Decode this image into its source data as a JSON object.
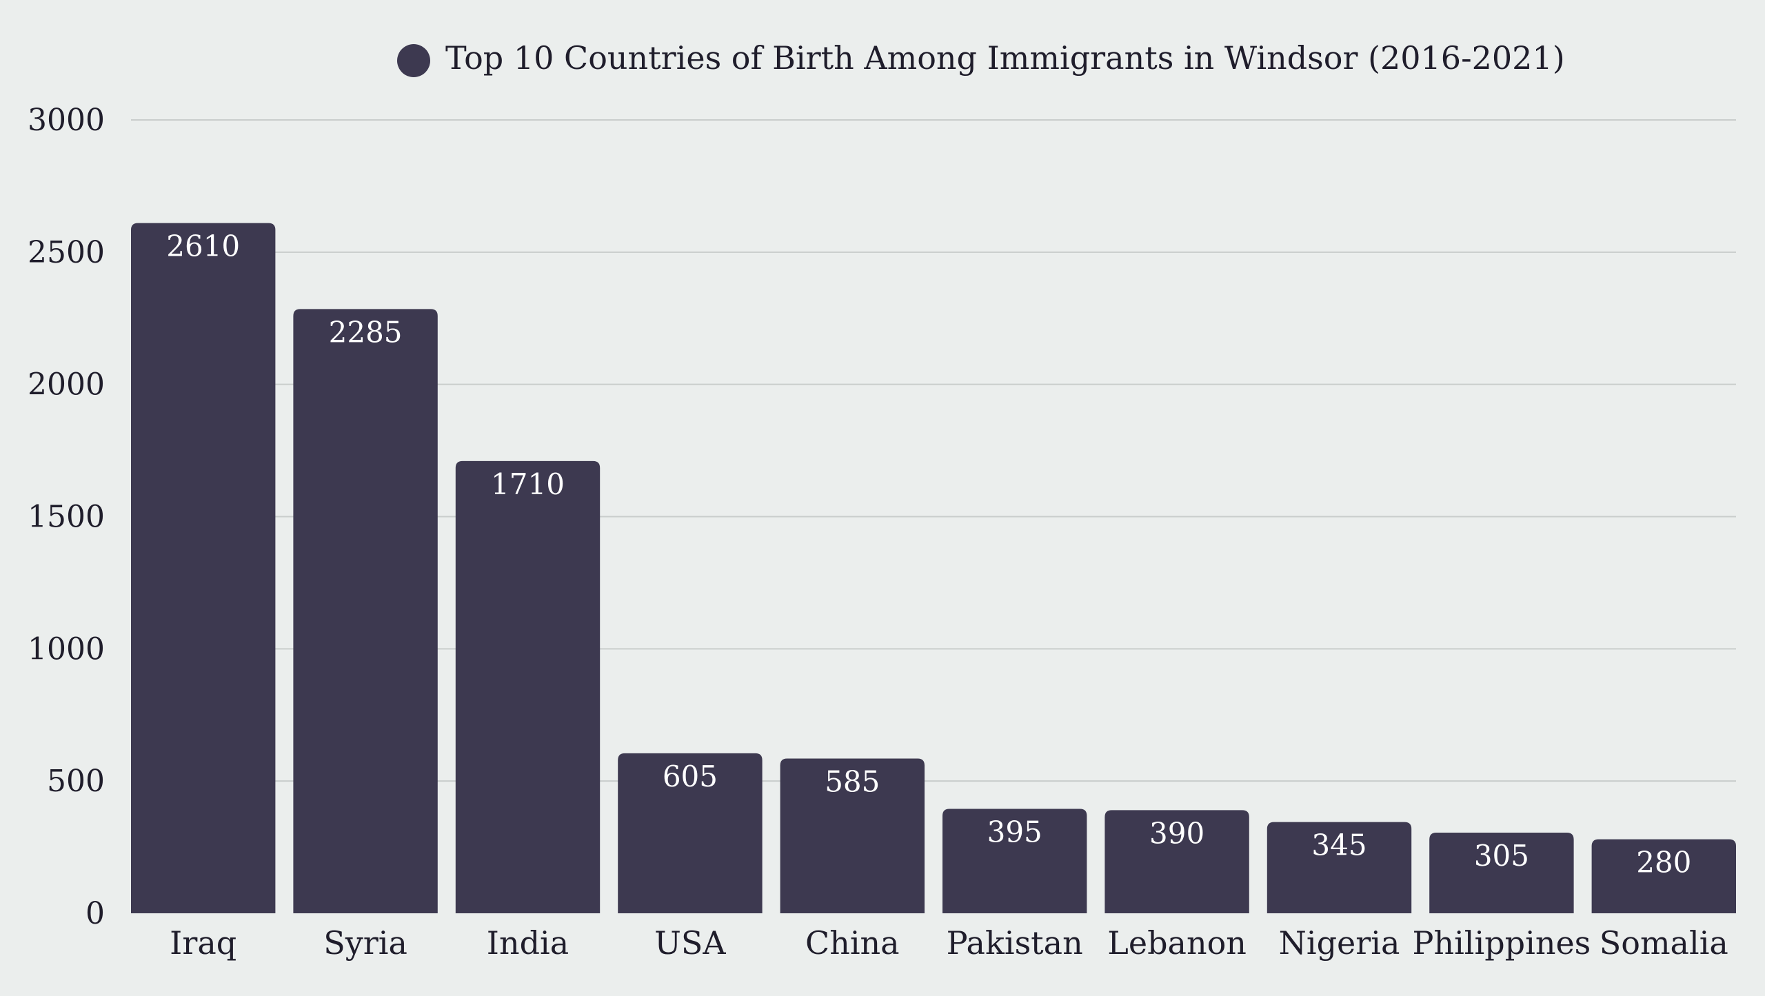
{
  "colors": {
    "background": "#ebeeed",
    "bar": "#3d3950",
    "grid": "#c9cdcc",
    "text": "#1f1d2b",
    "value_text": "#ffffff"
  },
  "chart_data": {
    "type": "bar",
    "title": "",
    "xlabel": "",
    "ylabel": "",
    "legend_position": "top-center",
    "grid": true,
    "ylim": [
      0,
      3000
    ],
    "yticks": [
      0,
      500,
      1000,
      1500,
      2000,
      2500,
      3000
    ],
    "categories": [
      "Iraq",
      "Syria",
      "India",
      "USA",
      "China",
      "Pakistan",
      "Lebanon",
      "Nigeria",
      "Philippines",
      "Somalia"
    ],
    "series": [
      {
        "name": "Top 10 Countries of Birth Among Immigrants in Windsor (2016-2021)",
        "values": [
          2610,
          2285,
          1710,
          605,
          585,
          395,
          390,
          345,
          305,
          280
        ]
      }
    ]
  }
}
